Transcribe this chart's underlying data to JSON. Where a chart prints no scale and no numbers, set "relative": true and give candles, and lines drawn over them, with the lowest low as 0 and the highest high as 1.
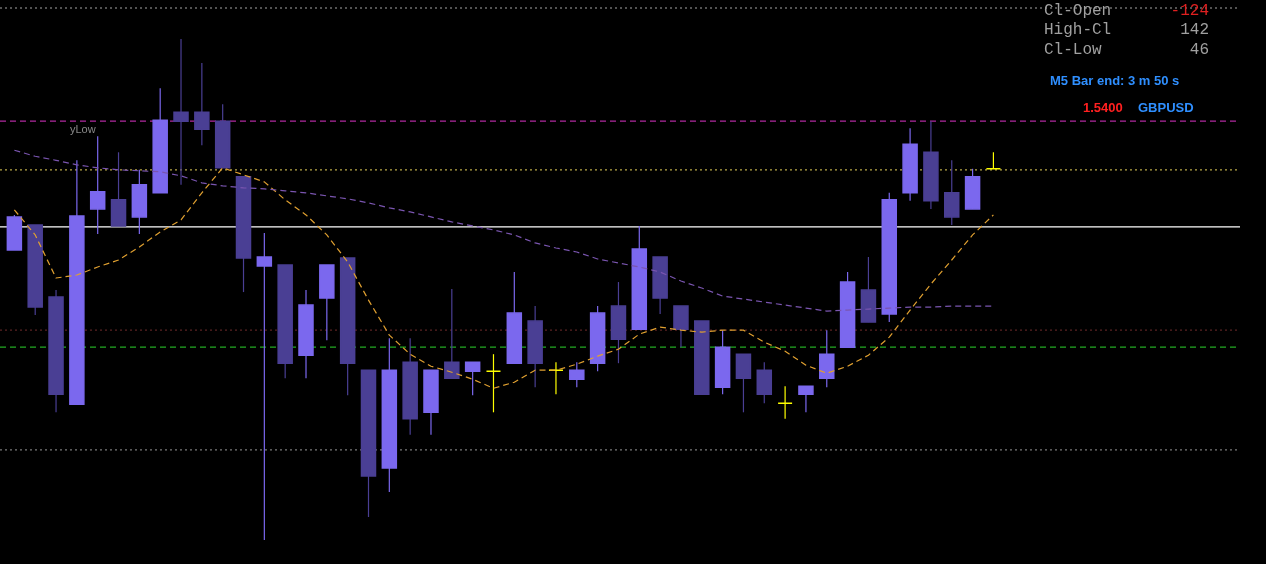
{
  "chart_data": {
    "type": "candlestick",
    "relative": true,
    "categories": [
      null,
      null,
      null,
      null,
      null,
      null,
      null,
      null,
      null,
      null,
      null,
      null,
      null,
      null,
      null,
      null,
      null,
      null,
      null,
      null,
      null,
      null,
      null,
      null,
      null,
      null,
      null,
      null,
      null,
      null,
      null,
      null,
      null,
      null,
      null,
      null,
      null,
      null,
      null,
      null,
      null,
      null,
      null,
      null,
      null,
      null,
      null,
      null
    ],
    "ohlc": [
      [
        0.579,
        0.649,
        0.579,
        0.645
      ],
      [
        0.629,
        0.629,
        0.449,
        0.465
      ],
      [
        0.485,
        0.499,
        0.255,
        0.291
      ],
      [
        0.271,
        0.758,
        0.271,
        0.647
      ],
      [
        0.661,
        0.806,
        0.611,
        0.695
      ],
      [
        0.679,
        0.774,
        0.627,
        0.627
      ],
      [
        0.645,
        0.739,
        0.611,
        0.709
      ],
      [
        0.693,
        0.902,
        0.693,
        0.838
      ],
      [
        0.854,
        1.0,
        0.709,
        0.836
      ],
      [
        0.854,
        0.952,
        0.788,
        0.82
      ],
      [
        0.836,
        0.87,
        0.743,
        0.743
      ],
      [
        0.725,
        0.725,
        0.495,
        0.563
      ],
      [
        0.547,
        0.613,
        0.0,
        0.565
      ],
      [
        0.549,
        0.549,
        0.323,
        0.353
      ],
      [
        0.369,
        0.499,
        0.323,
        0.469
      ],
      [
        0.483,
        0.549,
        0.399,
        0.549
      ],
      [
        0.563,
        0.563,
        0.289,
        0.353
      ],
      [
        0.339,
        0.339,
        0.046,
        0.128
      ],
      [
        0.144,
        0.403,
        0.096,
        0.339
      ],
      [
        0.355,
        0.403,
        0.21,
        0.242
      ],
      [
        0.255,
        0.339,
        0.21,
        0.339
      ],
      [
        0.355,
        0.501,
        0.323,
        0.323
      ],
      [
        0.337,
        0.355,
        0.289,
        0.355
      ],
      [
        0.337,
        0.371,
        0.255,
        0.337
      ],
      [
        0.353,
        0.535,
        0.353,
        0.453
      ],
      [
        0.437,
        0.467,
        0.305,
        0.353
      ],
      [
        0.339,
        0.355,
        0.291,
        0.339
      ],
      [
        0.321,
        0.355,
        0.305,
        0.339
      ],
      [
        0.353,
        0.467,
        0.337,
        0.453
      ],
      [
        0.467,
        0.515,
        0.353,
        0.401
      ],
      [
        0.421,
        0.627,
        0.421,
        0.581
      ],
      [
        0.565,
        0.565,
        0.451,
        0.483
      ],
      [
        0.467,
        0.467,
        0.385,
        0.421
      ],
      [
        0.437,
        0.437,
        0.291,
        0.291
      ],
      [
        0.305,
        0.419,
        0.291,
        0.385
      ],
      [
        0.371,
        0.371,
        0.255,
        0.323
      ],
      [
        0.339,
        0.355,
        0.273,
        0.291
      ],
      [
        0.273,
        0.307,
        0.242,
        0.273
      ],
      [
        0.291,
        0.307,
        0.255,
        0.307
      ],
      [
        0.323,
        0.419,
        0.305,
        0.371
      ],
      [
        0.385,
        0.535,
        0.385,
        0.515
      ],
      [
        0.499,
        0.565,
        0.435,
        0.435
      ],
      [
        0.451,
        0.693,
        0.435,
        0.679
      ],
      [
        0.693,
        0.822,
        0.677,
        0.79
      ],
      [
        0.774,
        0.836,
        0.661,
        0.677
      ],
      [
        0.693,
        0.758,
        0.629,
        0.645
      ],
      [
        0.661,
        0.741,
        0.661,
        0.725
      ],
      [
        0.741,
        0.774,
        0.741,
        0.741
      ]
    ],
    "colors": [
      "#7b68ee",
      "#4a3f94",
      "#4a3f94",
      "#7b68ee",
      "#7b68ee",
      "#4a3f94",
      "#7b68ee",
      "#7b68ee",
      "#4a3f94",
      "#4a3f94",
      "#4a3f94",
      "#4a3f94",
      "#7b68ee",
      "#4a3f94",
      "#7b68ee",
      "#7b68ee",
      "#4a3f94",
      "#4a3f94",
      "#7b68ee",
      "#4a3f94",
      "#7b68ee",
      "#4a3f94",
      "#7b68ee",
      "#ffff00",
      "#7b68ee",
      "#4a3f94",
      "#ffff00",
      "#7b68ee",
      "#7b68ee",
      "#4a3f94",
      "#7b68ee",
      "#4a3f94",
      "#4a3f94",
      "#4a3f94",
      "#7b68ee",
      "#4a3f94",
      "#4a3f94",
      "#ffff00",
      "#7b68ee",
      "#7b68ee",
      "#7b68ee",
      "#4a3f94",
      "#7b68ee",
      "#7b68ee",
      "#4a3f94",
      "#4a3f94",
      "#7b68ee",
      "#ffff00"
    ],
    "series": [
      {
        "type": "line",
        "color": "#e0a030",
        "line_style": "dashed",
        "values": [
          0.659,
          0.609,
          0.523,
          0.529,
          0.545,
          0.559,
          0.585,
          0.615,
          0.639,
          0.693,
          0.743,
          0.729,
          0.715,
          0.679,
          0.649,
          0.609,
          0.555,
          0.479,
          0.409,
          0.371,
          0.347,
          0.335,
          0.321,
          0.303,
          0.315,
          0.339,
          0.339,
          0.351,
          0.367,
          0.381,
          0.411,
          0.425,
          0.419,
          0.415,
          0.419,
          0.419,
          0.395,
          0.377,
          0.349,
          0.333,
          0.347,
          0.369,
          0.405,
          0.459,
          0.511,
          0.559,
          0.609,
          0.649
        ]
      },
      {
        "type": "line",
        "color": "#7a55b0",
        "line_style": "dashed",
        "values": [
          0.778,
          0.766,
          0.758,
          0.749,
          0.743,
          0.739,
          0.737,
          0.735,
          0.727,
          0.713,
          0.707,
          0.703,
          0.701,
          0.697,
          0.693,
          0.687,
          0.681,
          0.673,
          0.663,
          0.655,
          0.645,
          0.635,
          0.627,
          0.619,
          0.609,
          0.593,
          0.583,
          0.575,
          0.561,
          0.553,
          0.545,
          0.535,
          0.517,
          0.503,
          0.487,
          0.481,
          0.475,
          0.469,
          0.463,
          0.457,
          0.459,
          0.461,
          0.463,
          0.465,
          0.465,
          0.467,
          0.467,
          0.467
        ]
      }
    ],
    "ref_lines": [
      {
        "axis": "y",
        "value": 1.062,
        "color": "#6e6e6e",
        "line_style": "dotted"
      },
      {
        "axis": "y",
        "value": 0.836,
        "label": "yLow",
        "color": "#b02a9e",
        "line_style": "dashed"
      },
      {
        "axis": "y",
        "value": 0.739,
        "color": "#b8a848",
        "line_style": "dotted"
      },
      {
        "axis": "y",
        "value": 0.625,
        "color": "#ffffff",
        "line_style": "solid"
      },
      {
        "axis": "y",
        "value": 0.419,
        "color": "#5a2222",
        "line_style": "dotted"
      },
      {
        "axis": "y",
        "value": 0.385,
        "color": "#22aa22",
        "line_style": "dashed"
      },
      {
        "axis": "y",
        "value": 0.18,
        "color": "#7a7a7a",
        "line_style": "dotted"
      }
    ],
    "annotations": [
      "Cl-Open",
      "-124",
      "High-Cl",
      "142",
      "Cl-Low",
      "46",
      "M5 Bar end: 3 m 50 s",
      "1.5400",
      "GBPUSD"
    ]
  }
}
